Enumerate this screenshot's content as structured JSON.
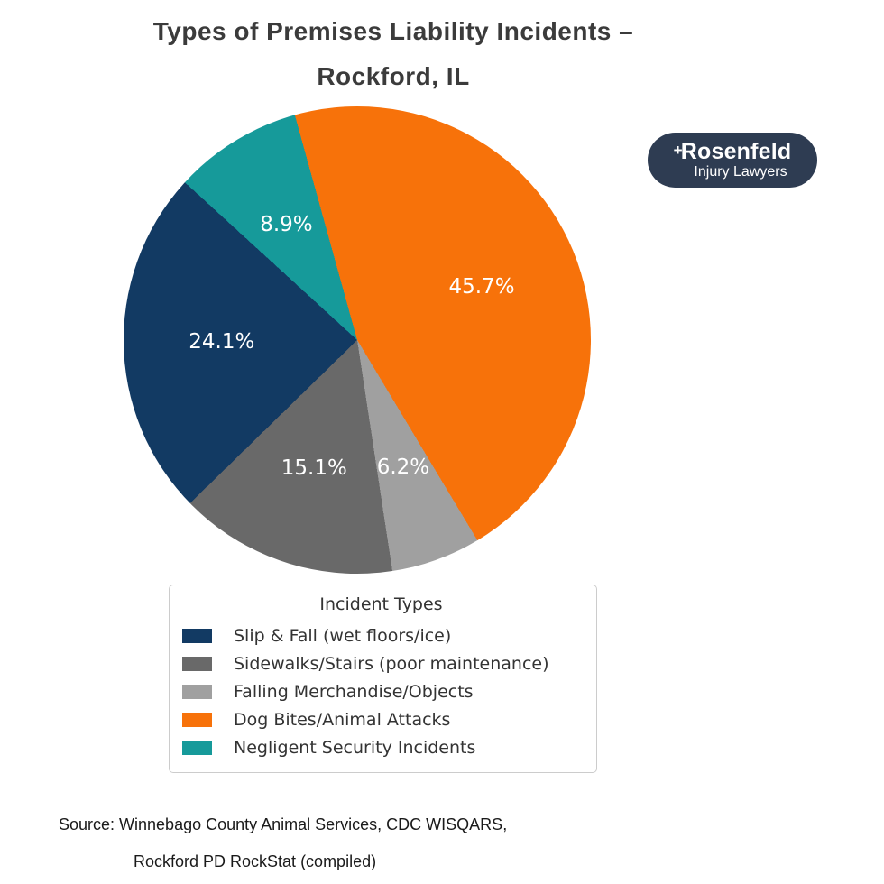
{
  "title": {
    "line1": "Types of Premises Liability Incidents –",
    "line2": "Rockford, IL"
  },
  "logo": {
    "plus_mark": "+",
    "name": "Rosenfeld",
    "tagline": "Injury Lawyers",
    "bg_color": "#2e3c52"
  },
  "chart_data": {
    "type": "pie",
    "title": "Types of Premises Liability Incidents – Rockford, IL",
    "start_angle_deg_clockwise_from_top": -15.5,
    "label_radius_fraction": 0.58,
    "label_color": "#ffffff",
    "slices": [
      {
        "label": "Dog Bites/Animal Attacks",
        "value": 45.7,
        "pct_label": "45.7%",
        "color": "#f7720a"
      },
      {
        "label": "Falling Merchandise/Objects",
        "value": 6.2,
        "pct_label": "6.2%",
        "color": "#a0a0a0"
      },
      {
        "label": "Sidewalks/Stairs (poor maintenance)",
        "value": 15.1,
        "pct_label": "15.1%",
        "color": "#696969"
      },
      {
        "label": "Slip & Fall (wet floors/ice)",
        "value": 24.1,
        "pct_label": "24.1%",
        "color": "#123a63"
      },
      {
        "label": "Negligent Security Incidents",
        "value": 8.9,
        "pct_label": "8.9%",
        "color": "#169a9a"
      }
    ]
  },
  "legend": {
    "title": "Incident Types",
    "items": [
      {
        "label": "Slip & Fall (wet floors/ice)",
        "color": "#123a63"
      },
      {
        "label": "Sidewalks/Stairs (poor maintenance)",
        "color": "#696969"
      },
      {
        "label": "Falling Merchandise/Objects",
        "color": "#a0a0a0"
      },
      {
        "label": "Dog Bites/Animal Attacks",
        "color": "#f7720a"
      },
      {
        "label": "Negligent Security Incidents",
        "color": "#169a9a"
      }
    ]
  },
  "source": {
    "line1": "Source: Winnebago County Animal Services, CDC WISQARS,",
    "line2": "Rockford PD RockStat (compiled)"
  }
}
